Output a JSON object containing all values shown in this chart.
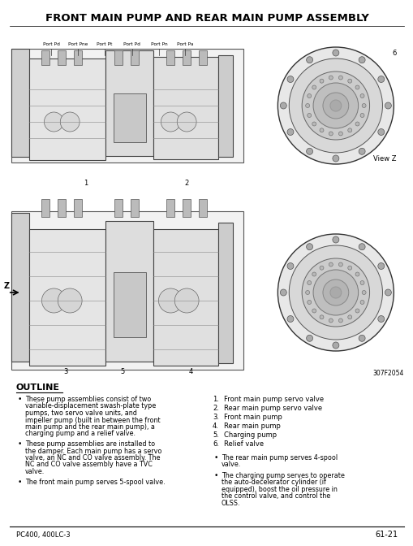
{
  "title": "FRONT MAIN PUMP AND REAR MAIN PUMP ASSEMBLY",
  "background_color": "#ffffff",
  "text_color": "#000000",
  "footer_left": "PC400, 400LC-3",
  "footer_right": "61-21",
  "outline_title": "OUTLINE",
  "outline_bullets_left": [
    "These pump assemblies consist of two variable-displacement swash-plate type pumps, two servo valve units, and impeller pump (built in between the front main pump and the rear main pump), a charging pump and a relief valve.",
    "These pump assemblies are installed to the damper. Each main pump has a servo valve, an NC and CO valve assembly. The NC and CO valve assembly have a TVC valve.",
    "The front main pump serves 5-spool valve."
  ],
  "outline_bullets_right_lower": [
    "The rear main pump serves 4-spool valve.",
    "The charging pump serves to operate the auto-decelerator cylinder (if equipped), boost the oil pressure in the control valve, and control the OLSS."
  ],
  "numbered_list": [
    "Front main pump servo valve",
    "Rear main pump servo valve",
    "Front main pump",
    "Rear main pump",
    "Charging pump",
    "Relief valve"
  ],
  "port_labels_top": [
    "Port Pd",
    "Port Pne",
    "Port Pt",
    "Port Pd",
    "Port Pn",
    "Port Pa"
  ],
  "view_z_label": "View Z",
  "figure_number": "307F2054",
  "z_arrow_label": "Z"
}
